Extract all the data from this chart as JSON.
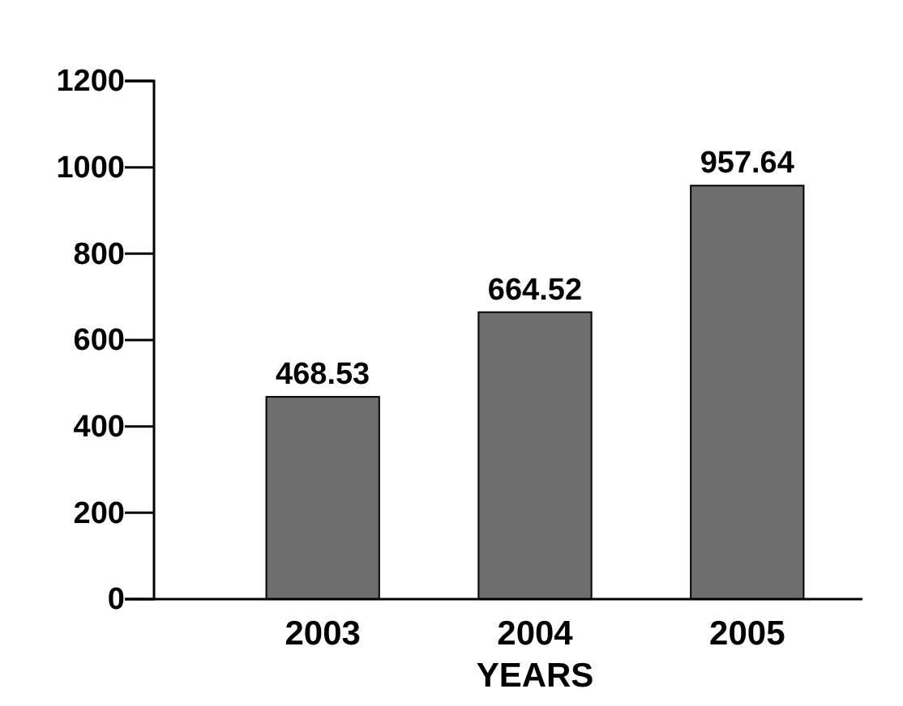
{
  "chart_data": {
    "type": "bar",
    "xlabel": "YEARS",
    "categories": [
      "2003",
      "2004",
      "2005"
    ],
    "values": [
      468.53,
      664.52,
      957.64
    ],
    "color": "#6e6e6e",
    "ylim": [
      0,
      1200
    ],
    "yticks": [
      0,
      200,
      400,
      600,
      800,
      1000,
      1200
    ],
    "data_labels": true,
    "grid": false
  }
}
